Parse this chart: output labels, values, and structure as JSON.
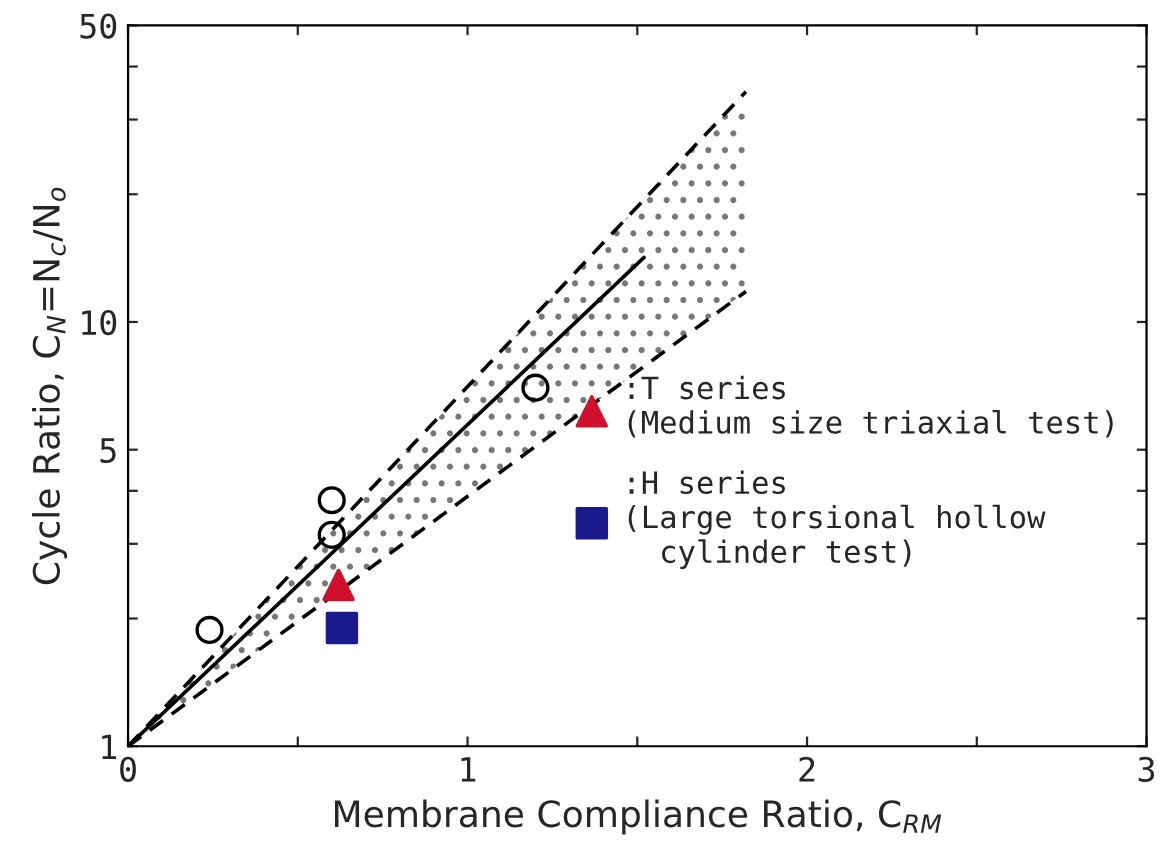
{
  "chart_data": {
    "type": "scatter",
    "xlabel": "Membrane Compliance Ratio, C$_{RM}$",
    "ylabel": "Cycle Ratio, C$_{N}$=N$_{c}$/N$_{o}$",
    "log": "y",
    "xlim": [
      0,
      3
    ],
    "ylim": [
      1,
      50
    ],
    "xticks": [
      0,
      {
        "value": 0.5,
        "label": null
      },
      1,
      {
        "value": 1.5,
        "label": null
      },
      2,
      {
        "value": 2.5,
        "label": null
      },
      3
    ],
    "yticks": [
      1,
      {
        "value": 2,
        "label": null
      },
      {
        "value": 3,
        "label": null
      },
      {
        "value": 4,
        "label": null
      },
      5,
      10,
      {
        "value": 20,
        "label": null
      },
      {
        "value": 30,
        "label": null
      },
      {
        "value": 40,
        "label": null
      },
      50
    ],
    "grid": false,
    "legend": "right",
    "series": [
      {
        "type": "line",
        "color": "#000000",
        "line_style": "dashed",
        "marker": "none",
        "x": [
          0,
          1.82
        ],
        "values": [
          1,
          34.9
        ]
      },
      {
        "type": "line",
        "color": "#000000",
        "line_style": "dashed",
        "marker": "none",
        "x": [
          0,
          1.82
        ],
        "values": [
          1,
          11.8
        ]
      },
      {
        "type": "line",
        "color": "#000000",
        "line_style": "solid",
        "marker": "none",
        "x": [
          0,
          1.52
        ],
        "values": [
          1,
          14.2
        ]
      },
      {
        "color": "#000000",
        "marker": "circle",
        "x": [
          0.24,
          0.6,
          0.6,
          1.2
        ],
        "values": [
          1.88,
          3.8,
          3.15,
          7.0
        ]
      },
      {
        "name": ":T series\n(Medium size triaxial test)",
        "color": "#d0102c",
        "marker": "triangle",
        "x": [
          0.62
        ],
        "values": [
          2.4
        ]
      },
      {
        "name": ":H series\n(Large torsional hollow\n  cylinder test)",
        "color": "#1a1a8c",
        "marker": "square",
        "x": [
          0.63
        ],
        "values": [
          1.9
        ]
      }
    ]
  }
}
